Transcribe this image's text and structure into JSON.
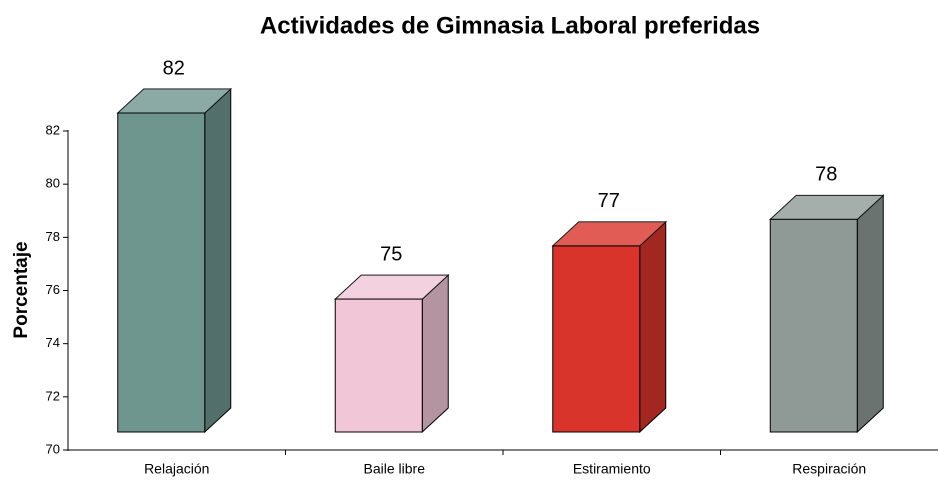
{
  "chart_data": {
    "type": "bar3d",
    "title": "Actividades de Gimnasia Laboral preferidas",
    "y_label": "Porcentaje",
    "categories": [
      "Relajación",
      "Baile libre",
      "Estiramiento",
      "Respiración"
    ],
    "values": [
      82,
      75,
      77,
      78
    ],
    "colors": [
      "#6f958f",
      "#f1c6d6",
      "#d9342b",
      "#8f9a97"
    ],
    "ylim": [
      70,
      82
    ],
    "yticks": [
      70,
      72,
      74,
      76,
      78,
      80,
      82
    ],
    "grid": false
  }
}
